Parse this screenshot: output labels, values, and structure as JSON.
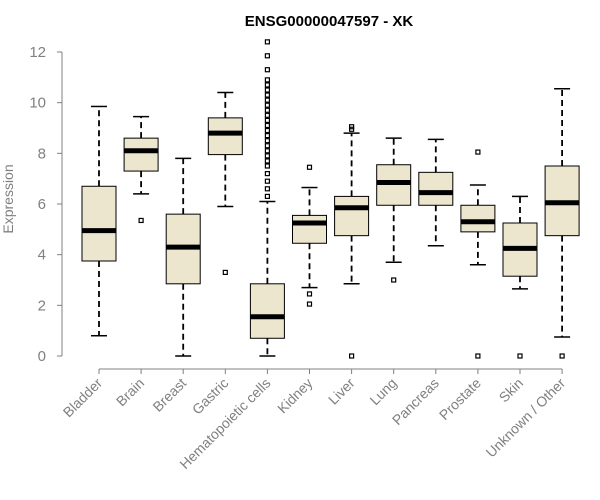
{
  "chart_data": {
    "type": "boxplot",
    "title": "ENSG00000047597 - XK",
    "xlabel": "",
    "ylabel": "Expression",
    "ylim": [
      0,
      12
    ],
    "yticks": [
      0,
      2,
      4,
      6,
      8,
      10,
      12
    ],
    "box_color": "#ede6cf",
    "categories": [
      "Bladder",
      "Brain",
      "Breast",
      "Gastric",
      "Hematopoietic cells",
      "Kidney",
      "Liver",
      "Lung",
      "Pancreas",
      "Prostate",
      "Skin",
      "Unknown / Other"
    ],
    "boxes": [
      {
        "name": "Bladder",
        "whisker_low": 0.8,
        "q1": 3.75,
        "median": 4.95,
        "q3": 6.7,
        "whisker_high": 9.85,
        "outliers": []
      },
      {
        "name": "Brain",
        "whisker_low": 6.4,
        "q1": 7.3,
        "median": 8.1,
        "q3": 8.6,
        "whisker_high": 9.45,
        "outliers": [
          5.35
        ]
      },
      {
        "name": "Breast",
        "whisker_low": 0.0,
        "q1": 2.85,
        "median": 4.3,
        "q3": 5.6,
        "whisker_high": 7.8,
        "outliers": []
      },
      {
        "name": "Gastric",
        "whisker_low": 5.9,
        "q1": 7.95,
        "median": 8.8,
        "q3": 9.4,
        "whisker_high": 10.4,
        "outliers": [
          3.3
        ]
      },
      {
        "name": "Hematopoietic cells",
        "whisker_low": 0.0,
        "q1": 0.7,
        "median": 1.55,
        "q3": 2.85,
        "whisker_high": 6.1,
        "outliers": [
          6.3,
          6.6,
          6.9,
          7.2,
          7.5,
          7.7,
          7.9,
          8.1,
          8.3,
          8.5,
          8.7,
          8.9,
          9.1,
          9.3,
          9.5,
          9.7,
          9.9,
          10.1,
          10.3,
          10.5,
          10.7,
          10.9,
          11.3,
          11.85,
          12.4
        ]
      },
      {
        "name": "Kidney",
        "whisker_low": 2.7,
        "q1": 4.45,
        "median": 5.25,
        "q3": 5.55,
        "whisker_high": 6.65,
        "outliers": [
          7.45,
          2.45,
          2.05
        ]
      },
      {
        "name": "Liver",
        "whisker_low": 2.85,
        "q1": 4.75,
        "median": 5.85,
        "q3": 6.3,
        "whisker_high": 8.8,
        "outliers": [
          9.05,
          8.95,
          0.0
        ]
      },
      {
        "name": "Lung",
        "whisker_low": 3.7,
        "q1": 5.95,
        "median": 6.85,
        "q3": 7.55,
        "whisker_high": 8.6,
        "outliers": [
          3.0
        ]
      },
      {
        "name": "Pancreas",
        "whisker_low": 4.35,
        "q1": 5.95,
        "median": 6.45,
        "q3": 7.25,
        "whisker_high": 8.55,
        "outliers": []
      },
      {
        "name": "Prostate",
        "whisker_low": 3.6,
        "q1": 4.9,
        "median": 5.3,
        "q3": 5.95,
        "whisker_high": 6.75,
        "outliers": [
          8.05,
          0.0
        ]
      },
      {
        "name": "Skin",
        "whisker_low": 2.65,
        "q1": 3.15,
        "median": 4.25,
        "q3": 5.25,
        "whisker_high": 6.3,
        "outliers": [
          0.0
        ]
      },
      {
        "name": "Unknown / Other",
        "whisker_low": 0.75,
        "q1": 4.75,
        "median": 6.05,
        "q3": 7.5,
        "whisker_high": 10.55,
        "outliers": [
          0.0
        ]
      }
    ]
  }
}
